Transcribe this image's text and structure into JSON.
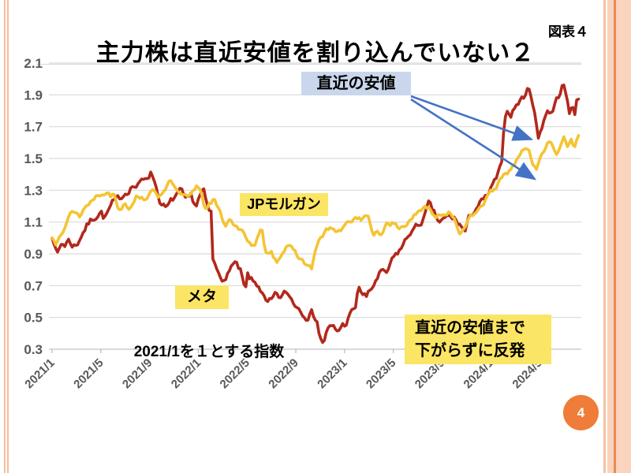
{
  "slide": {
    "title": "主力株は直近安値を割り込んでいない２",
    "figure_label": "図表４",
    "page_number": "4"
  },
  "annotations": {
    "recent_low_label": "直近の安値",
    "rebound_note": [
      "直近の安値まで",
      "下がらずに反発"
    ],
    "arrow_color": "#4472c4",
    "arrows": [
      {
        "points_to": "メタ series recent-low dip",
        "month": 39.85,
        "value": 1.62
      },
      {
        "points_to": "JPモルガン series recent-low dip",
        "month": 39.8,
        "value": 1.44
      }
    ]
  },
  "colors": {
    "meta_line": "#b2281c",
    "jpm_line": "#f4c433",
    "highlight_yellow": "#fbe564",
    "recent_low_box": "#c9d6eb",
    "arrow_blue": "#4472c4",
    "page_circle_orange": "#ef7c38",
    "axis_text": "#595959",
    "gridline": "#dadada",
    "border_salmon": "#f5bd9d",
    "border_salmon_light": "#fad4be",
    "border_orange_line": "#ea8a50"
  },
  "chart_data": {
    "type": "line",
    "title": "主力株は直近安値を割り込んでいない２",
    "note": "2021/1を１とする指数",
    "ylim": [
      0.3,
      2.1
    ],
    "y_ticks": [
      "2.1",
      "1.9",
      "1.7",
      "1.5",
      "1.3",
      "1.1",
      "0.9",
      "0.7",
      "0.5",
      "0.3"
    ],
    "x_tick_labels": [
      "2021/1",
      "2021/5",
      "2021/9",
      "2022/1",
      "2022/5",
      "2022/9",
      "2023/1",
      "2023/5",
      "2023/9",
      "2024/1",
      "2024/5"
    ],
    "x_tick_months": [
      0,
      4,
      8,
      12,
      16,
      20,
      24,
      28,
      32,
      36,
      40
    ],
    "x_months_max": 43.3,
    "grid": true,
    "legend": "inline-labels",
    "series": [
      {
        "name": "メタ",
        "color": "#b2281c",
        "points": [
          [
            0,
            1.0
          ],
          [
            0.2,
            0.95
          ],
          [
            0.45,
            0.9
          ],
          [
            0.8,
            0.97
          ],
          [
            1,
            0.95
          ],
          [
            1.3,
            0.99
          ],
          [
            1.6,
            0.96
          ],
          [
            2,
            0.95
          ],
          [
            2.4,
            1.02
          ],
          [
            2.8,
            1.07
          ],
          [
            3.2,
            1.11
          ],
          [
            3.6,
            1.14
          ],
          [
            4,
            1.17
          ],
          [
            4.3,
            1.12
          ],
          [
            4.7,
            1.18
          ],
          [
            5,
            1.22
          ],
          [
            5.4,
            1.24
          ],
          [
            5.8,
            1.27
          ],
          [
            6.2,
            1.3
          ],
          [
            6.6,
            1.33
          ],
          [
            7,
            1.32
          ],
          [
            7.4,
            1.36
          ],
          [
            7.8,
            1.39
          ],
          [
            8.1,
            1.41
          ],
          [
            8.4,
            1.37
          ],
          [
            8.7,
            1.27
          ],
          [
            9,
            1.21
          ],
          [
            9.4,
            1.18
          ],
          [
            9.8,
            1.23
          ],
          [
            10.2,
            1.27
          ],
          [
            10.6,
            1.29
          ],
          [
            11,
            1.22
          ],
          [
            11.4,
            1.26
          ],
          [
            11.8,
            1.2
          ],
          [
            12.1,
            1.26
          ],
          [
            12.4,
            1.3
          ],
          [
            12.8,
            1.17
          ],
          [
            13.05,
            1.16
          ],
          [
            13.15,
            0.86
          ],
          [
            13.5,
            0.81
          ],
          [
            13.9,
            0.77
          ],
          [
            14.2,
            0.71
          ],
          [
            14.6,
            0.82
          ],
          [
            15,
            0.84
          ],
          [
            15.5,
            0.78
          ],
          [
            15.85,
            0.65
          ],
          [
            16.05,
            0.76
          ],
          [
            16.5,
            0.72
          ],
          [
            17,
            0.7
          ],
          [
            17.3,
            0.64
          ],
          [
            17.6,
            0.58
          ],
          [
            18,
            0.6
          ],
          [
            18.4,
            0.64
          ],
          [
            18.8,
            0.62
          ],
          [
            19.2,
            0.66
          ],
          [
            19.6,
            0.62
          ],
          [
            20,
            0.58
          ],
          [
            20.4,
            0.55
          ],
          [
            20.9,
            0.51
          ],
          [
            21.3,
            0.53
          ],
          [
            21.8,
            0.48
          ],
          [
            21.95,
            0.37
          ],
          [
            22.25,
            0.34
          ],
          [
            22.6,
            0.42
          ],
          [
            23,
            0.44
          ],
          [
            23.4,
            0.41
          ],
          [
            23.8,
            0.45
          ],
          [
            24.1,
            0.46
          ],
          [
            24.5,
            0.52
          ],
          [
            24.95,
            0.57
          ],
          [
            25.15,
            0.7
          ],
          [
            25.45,
            0.65
          ],
          [
            25.8,
            0.63
          ],
          [
            26.2,
            0.67
          ],
          [
            26.6,
            0.74
          ],
          [
            27,
            0.79
          ],
          [
            27.4,
            0.76
          ],
          [
            27.8,
            0.84
          ],
          [
            28.2,
            0.89
          ],
          [
            28.6,
            0.93
          ],
          [
            29,
            0.98
          ],
          [
            29.4,
            1.04
          ],
          [
            29.8,
            1.06
          ],
          [
            30.2,
            1.09
          ],
          [
            30.6,
            1.14
          ],
          [
            30.9,
            1.21
          ],
          [
            31.3,
            1.16
          ],
          [
            31.7,
            1.1
          ],
          [
            32.1,
            1.11
          ],
          [
            32.5,
            1.13
          ],
          [
            33,
            1.12
          ],
          [
            33.5,
            1.08
          ],
          [
            33.9,
            1.04
          ],
          [
            34.3,
            1.14
          ],
          [
            34.7,
            1.18
          ],
          [
            35,
            1.21
          ],
          [
            35.5,
            1.24
          ],
          [
            36,
            1.3
          ],
          [
            36.5,
            1.38
          ],
          [
            36.95,
            1.46
          ],
          [
            37.1,
            1.77
          ],
          [
            37.4,
            1.8
          ],
          [
            37.7,
            1.78
          ],
          [
            38,
            1.83
          ],
          [
            38.4,
            1.86
          ],
          [
            38.8,
            1.9
          ],
          [
            39.2,
            1.95
          ],
          [
            39.5,
            1.83
          ],
          [
            39.7,
            1.74
          ],
          [
            39.85,
            1.62
          ],
          [
            40.1,
            1.68
          ],
          [
            40.4,
            1.76
          ],
          [
            40.7,
            1.81
          ],
          [
            41,
            1.78
          ],
          [
            41.3,
            1.85
          ],
          [
            41.6,
            1.9
          ],
          [
            41.9,
            1.97
          ],
          [
            42.2,
            1.9
          ],
          [
            42.45,
            1.77
          ],
          [
            42.7,
            1.85
          ],
          [
            42.9,
            1.8
          ],
          [
            43.1,
            1.88
          ],
          [
            43.15,
            1.83
          ],
          [
            43.3,
            1.96
          ]
        ]
      },
      {
        "name": "JPモルガン",
        "color": "#f4c433",
        "points": [
          [
            0,
            1.0
          ],
          [
            0.3,
            0.97
          ],
          [
            0.6,
            1.03
          ],
          [
            1,
            1.07
          ],
          [
            1.5,
            1.15
          ],
          [
            2,
            1.17
          ],
          [
            2.3,
            1.13
          ],
          [
            2.7,
            1.2
          ],
          [
            3,
            1.21
          ],
          [
            3.5,
            1.26
          ],
          [
            4,
            1.28
          ],
          [
            4.5,
            1.3
          ],
          [
            4.8,
            1.26
          ],
          [
            5.1,
            1.28
          ],
          [
            5.5,
            1.17
          ],
          [
            6,
            1.23
          ],
          [
            6.3,
            1.19
          ],
          [
            6.7,
            1.24
          ],
          [
            7,
            1.27
          ],
          [
            7.5,
            1.25
          ],
          [
            8,
            1.27
          ],
          [
            8.4,
            1.3
          ],
          [
            8.8,
            1.26
          ],
          [
            9.2,
            1.31
          ],
          [
            9.6,
            1.35
          ],
          [
            10,
            1.33
          ],
          [
            10.4,
            1.27
          ],
          [
            10.8,
            1.26
          ],
          [
            11.2,
            1.25
          ],
          [
            11.6,
            1.29
          ],
          [
            11.9,
            1.33
          ],
          [
            12.2,
            1.31
          ],
          [
            12.5,
            1.19
          ],
          [
            12.9,
            1.22
          ],
          [
            13.3,
            1.24
          ],
          [
            13.8,
            1.15
          ],
          [
            14.2,
            1.08
          ],
          [
            14.6,
            1.13
          ],
          [
            15,
            1.08
          ],
          [
            15.5,
            1.04
          ],
          [
            15.9,
            1.01
          ],
          [
            16.2,
            0.98
          ],
          [
            16.6,
            0.94
          ],
          [
            16.9,
            1.0
          ],
          [
            17.2,
            1.05
          ],
          [
            17.6,
            0.88
          ],
          [
            18,
            0.93
          ],
          [
            18.4,
            0.85
          ],
          [
            18.8,
            0.9
          ],
          [
            19.2,
            0.95
          ],
          [
            19.6,
            0.93
          ],
          [
            20,
            0.9
          ],
          [
            20.5,
            0.86
          ],
          [
            20.9,
            0.83
          ],
          [
            21.3,
            0.81
          ],
          [
            21.7,
            0.94
          ],
          [
            22,
            0.99
          ],
          [
            22.5,
            1.05
          ],
          [
            23,
            1.06
          ],
          [
            23.5,
            1.03
          ],
          [
            24,
            1.07
          ],
          [
            24.5,
            1.11
          ],
          [
            25,
            1.13
          ],
          [
            25.5,
            1.12
          ],
          [
            26,
            1.14
          ],
          [
            26.35,
            1.0
          ],
          [
            26.7,
            1.03
          ],
          [
            27,
            1.02
          ],
          [
            27.5,
            1.1
          ],
          [
            28,
            1.09
          ],
          [
            28.5,
            1.06
          ],
          [
            29,
            1.08
          ],
          [
            29.5,
            1.13
          ],
          [
            30,
            1.15
          ],
          [
            30.5,
            1.18
          ],
          [
            30.9,
            1.2
          ],
          [
            31.4,
            1.13
          ],
          [
            31.8,
            1.16
          ],
          [
            32.2,
            1.15
          ],
          [
            32.6,
            1.17
          ],
          [
            33,
            1.13
          ],
          [
            33.5,
            1.03
          ],
          [
            33.9,
            1.05
          ],
          [
            34.3,
            1.12
          ],
          [
            34.7,
            1.16
          ],
          [
            35,
            1.2
          ],
          [
            35.5,
            1.23
          ],
          [
            36,
            1.28
          ],
          [
            36.5,
            1.33
          ],
          [
            37,
            1.38
          ],
          [
            37.5,
            1.42
          ],
          [
            38,
            1.47
          ],
          [
            38.4,
            1.52
          ],
          [
            38.8,
            1.57
          ],
          [
            39.1,
            1.55
          ],
          [
            39.5,
            1.46
          ],
          [
            39.8,
            1.44
          ],
          [
            40.1,
            1.51
          ],
          [
            40.5,
            1.58
          ],
          [
            40.8,
            1.61
          ],
          [
            41.1,
            1.57
          ],
          [
            41.4,
            1.53
          ],
          [
            41.7,
            1.58
          ],
          [
            42,
            1.62
          ],
          [
            42.3,
            1.58
          ],
          [
            42.6,
            1.63
          ],
          [
            42.9,
            1.57
          ],
          [
            43.1,
            1.62
          ],
          [
            43.3,
            1.67
          ]
        ]
      }
    ]
  }
}
